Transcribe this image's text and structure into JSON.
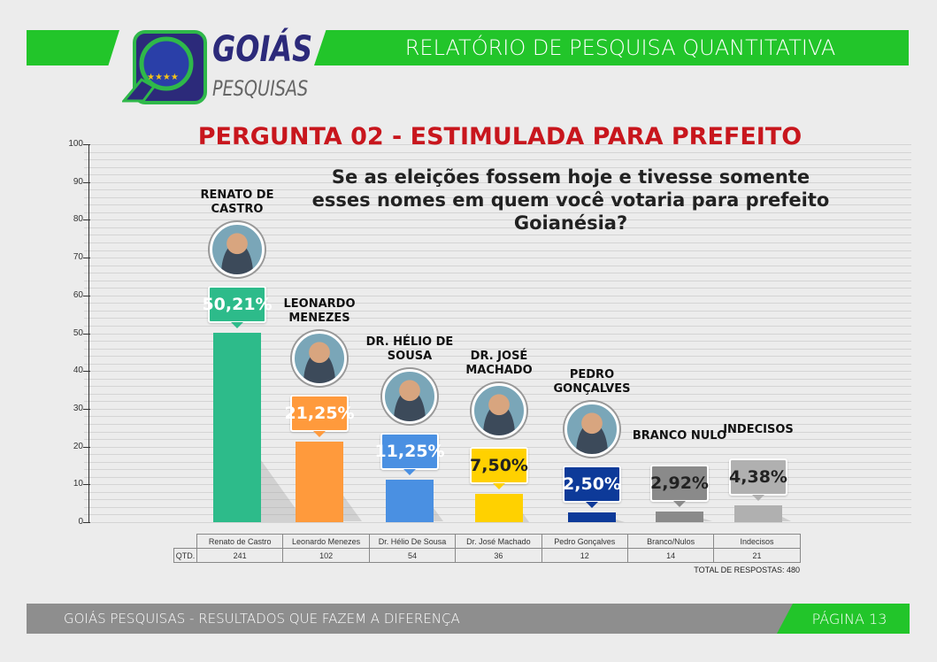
{
  "header": {
    "logo_main": "GOIÁS",
    "logo_sub": "PESQUISAS",
    "report_title": "RELATÓRIO DE PESQUISA QUANTITATIVA"
  },
  "chart_data": {
    "type": "bar",
    "title": "PERGUNTA 02 - ESTIMULADA PARA PREFEITO",
    "subtitle": "Se as eleições fossem hoje e tivesse somente esses nomes em quem você votaria para prefeito Goianésia?",
    "ylim": [
      0,
      100
    ],
    "yticks": [
      "0",
      "10",
      "20",
      "30",
      "40",
      "50",
      "60",
      "70",
      "80",
      "90",
      "100"
    ],
    "categories": [
      "Renato de Castro",
      "Leonardo Menezes",
      "Dr. Hélio De Sousa",
      "Dr. José Machado",
      "Pedro Gonçalves",
      "Branco/Nulos",
      "Indecisos"
    ],
    "display_names": [
      "RENATO DE CASTRO",
      "LEONARDO MENEZES",
      "DR. HÉLIO DE SOUSA",
      "DR. JOSÉ MACHADO",
      "PEDRO GONÇALVES",
      "BRANCO NULO",
      "INDECISOS"
    ],
    "values": [
      50.21,
      21.25,
      11.25,
      7.5,
      2.5,
      2.92,
      4.38
    ],
    "value_labels": [
      "50,21%",
      "21,25%",
      "11,25%",
      "7,50%",
      "2,50%",
      "2,92%",
      "4,38%"
    ],
    "bar_colors": [
      "#2dbb8a",
      "#ff9a3c",
      "#4a90e2",
      "#ffd100",
      "#0d3a99",
      "#8a8a8a",
      "#b0b0b0"
    ],
    "badge_text_colors": [
      "#fff",
      "#fff",
      "#fff",
      "#222",
      "#fff",
      "#222",
      "#222"
    ],
    "has_photo": [
      true,
      true,
      true,
      true,
      true,
      false,
      false
    ],
    "table": {
      "row_label": "QTD.",
      "counts": [
        "241",
        "102",
        "54",
        "36",
        "12",
        "14",
        "21"
      ],
      "total": "TOTAL DE RESPOSTAS: 480"
    }
  },
  "footer": {
    "tagline": "GOIÁS PESQUISAS - RESULTADOS QUE FAZEM A DIFERENÇA",
    "page": "PÁGINA 13"
  }
}
